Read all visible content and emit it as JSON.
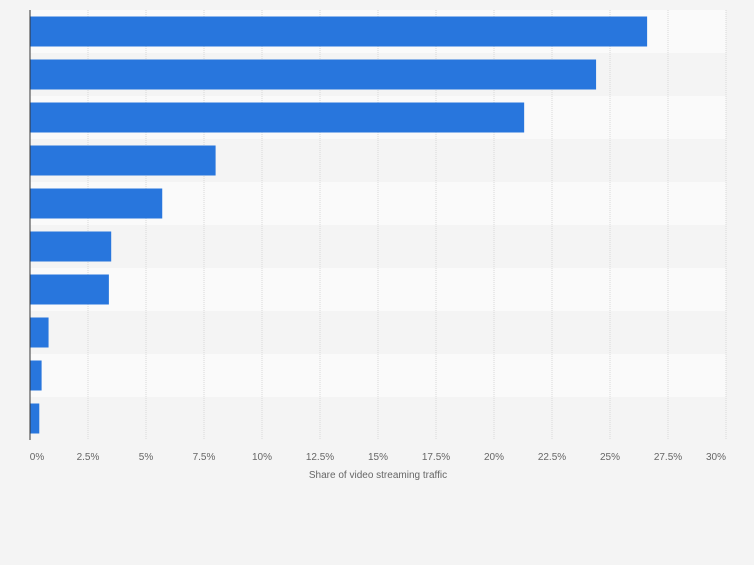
{
  "chart_data": {
    "type": "bar",
    "orientation": "horizontal",
    "categories": [
      "",
      "",
      "",
      "",
      "",
      "",
      "",
      "",
      "",
      ""
    ],
    "values": [
      26.6,
      24.4,
      21.3,
      8.0,
      5.7,
      3.5,
      3.4,
      0.8,
      0.5,
      0.4
    ],
    "xlabel": "Share of video streaming traffic",
    "ylabel": "",
    "xlim": [
      0,
      30
    ],
    "xticks": [
      0,
      2.5,
      5,
      7.5,
      10,
      12.5,
      15,
      17.5,
      20,
      22.5,
      25,
      27.5,
      30
    ],
    "xtick_labels": [
      "0%",
      "2.5%",
      "5%",
      "7.5%",
      "10%",
      "12.5%",
      "15%",
      "17.5%",
      "20%",
      "22.5%",
      "25%",
      "27.5%",
      "30%"
    ],
    "grid": true,
    "legend": "none",
    "colors": {
      "bar": "#2876dd",
      "band_light": "#fafafa",
      "band_dark": "#f4f4f4",
      "grid": "#d8d8d8",
      "axis": "#333333",
      "text": "#666666"
    }
  }
}
